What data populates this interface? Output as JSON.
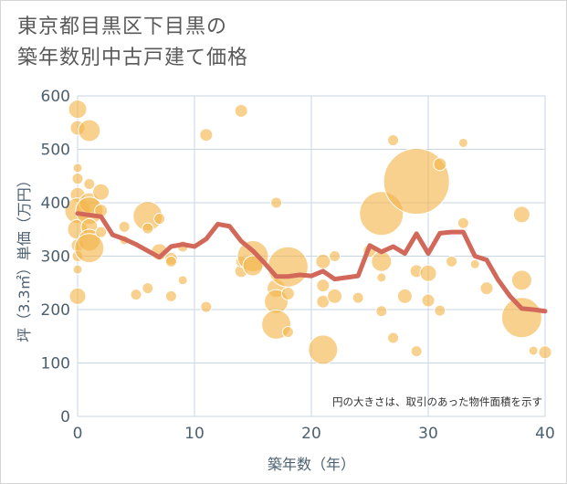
{
  "title_line1": "東京都目黒区下目黒の",
  "title_line2": "築年数別中古戸建て価格",
  "chart_data": {
    "type": "scatter",
    "xlabel": "築年数（年）",
    "ylabel": "坪（3.3㎡）単価（万円）",
    "xlim": [
      0,
      40
    ],
    "ylim": [
      0,
      600
    ],
    "xticks": [
      "0",
      "10",
      "20",
      "30",
      "40"
    ],
    "yticks": [
      "0",
      "100",
      "200",
      "300",
      "400",
      "500",
      "600"
    ],
    "annotation": "円の大きさは、取引のあった物件面積を示す",
    "colors": {
      "bubble": "#f4b448",
      "line": "#d1685a",
      "grid": "#c8d6e4",
      "background": "#ffffff"
    },
    "bubbles": [
      {
        "x": 0,
        "y": 575,
        "s": 10
      },
      {
        "x": 0,
        "y": 540,
        "s": 8
      },
      {
        "x": 0,
        "y": 465,
        "s": 5
      },
      {
        "x": 0,
        "y": 445,
        "s": 6
      },
      {
        "x": 0,
        "y": 415,
        "s": 8
      },
      {
        "x": 0,
        "y": 385,
        "s": 14
      },
      {
        "x": 0,
        "y": 350,
        "s": 11
      },
      {
        "x": 0,
        "y": 320,
        "s": 7
      },
      {
        "x": 0,
        "y": 300,
        "s": 6
      },
      {
        "x": 0,
        "y": 275,
        "s": 5
      },
      {
        "x": 0,
        "y": 225,
        "s": 9
      },
      {
        "x": 1,
        "y": 535,
        "s": 12
      },
      {
        "x": 1,
        "y": 435,
        "s": 6
      },
      {
        "x": 1,
        "y": 400,
        "s": 11
      },
      {
        "x": 1,
        "y": 385,
        "s": 15
      },
      {
        "x": 1,
        "y": 355,
        "s": 9
      },
      {
        "x": 1,
        "y": 330,
        "s": 12
      },
      {
        "x": 1,
        "y": 315,
        "s": 16
      },
      {
        "x": 2,
        "y": 420,
        "s": 9
      },
      {
        "x": 2,
        "y": 385,
        "s": 7
      },
      {
        "x": 2,
        "y": 345,
        "s": 6
      },
      {
        "x": 4,
        "y": 355,
        "s": 6
      },
      {
        "x": 4,
        "y": 330,
        "s": 5
      },
      {
        "x": 5,
        "y": 228,
        "s": 6
      },
      {
        "x": 6,
        "y": 375,
        "s": 16
      },
      {
        "x": 6,
        "y": 352,
        "s": 6
      },
      {
        "x": 6,
        "y": 240,
        "s": 6
      },
      {
        "x": 7,
        "y": 370,
        "s": 6
      },
      {
        "x": 7,
        "y": 308,
        "s": 9
      },
      {
        "x": 8,
        "y": 295,
        "s": 7
      },
      {
        "x": 8,
        "y": 290,
        "s": 6
      },
      {
        "x": 8,
        "y": 225,
        "s": 6
      },
      {
        "x": 9,
        "y": 255,
        "s": 5
      },
      {
        "x": 9,
        "y": 318,
        "s": 6
      },
      {
        "x": 11,
        "y": 527,
        "s": 7
      },
      {
        "x": 11,
        "y": 205,
        "s": 6
      },
      {
        "x": 14,
        "y": 572,
        "s": 7
      },
      {
        "x": 14,
        "y": 272,
        "s": 7
      },
      {
        "x": 14,
        "y": 290,
        "s": 6
      },
      {
        "x": 15,
        "y": 300,
        "s": 17
      },
      {
        "x": 15,
        "y": 282,
        "s": 11
      },
      {
        "x": 17,
        "y": 400,
        "s": 6
      },
      {
        "x": 17,
        "y": 240,
        "s": 10
      },
      {
        "x": 17,
        "y": 215,
        "s": 13
      },
      {
        "x": 17,
        "y": 172,
        "s": 16
      },
      {
        "x": 18,
        "y": 280,
        "s": 22
      },
      {
        "x": 18,
        "y": 230,
        "s": 7
      },
      {
        "x": 18,
        "y": 158,
        "s": 6
      },
      {
        "x": 21,
        "y": 290,
        "s": 8
      },
      {
        "x": 21,
        "y": 245,
        "s": 7
      },
      {
        "x": 21,
        "y": 215,
        "s": 7
      },
      {
        "x": 21,
        "y": 125,
        "s": 16
      },
      {
        "x": 22,
        "y": 300,
        "s": 6
      },
      {
        "x": 22,
        "y": 225,
        "s": 8
      },
      {
        "x": 24,
        "y": 222,
        "s": 6
      },
      {
        "x": 25,
        "y": 310,
        "s": 7
      },
      {
        "x": 26,
        "y": 380,
        "s": 24
      },
      {
        "x": 26,
        "y": 290,
        "s": 11
      },
      {
        "x": 26,
        "y": 260,
        "s": 5
      },
      {
        "x": 26,
        "y": 197,
        "s": 6
      },
      {
        "x": 27,
        "y": 517,
        "s": 6
      },
      {
        "x": 27,
        "y": 147,
        "s": 6
      },
      {
        "x": 28,
        "y": 225,
        "s": 8
      },
      {
        "x": 29,
        "y": 440,
        "s": 36
      },
      {
        "x": 29,
        "y": 272,
        "s": 7
      },
      {
        "x": 29,
        "y": 122,
        "s": 6
      },
      {
        "x": 30,
        "y": 268,
        "s": 9
      },
      {
        "x": 30,
        "y": 217,
        "s": 7
      },
      {
        "x": 31,
        "y": 472,
        "s": 7
      },
      {
        "x": 31,
        "y": 198,
        "s": 6
      },
      {
        "x": 32,
        "y": 290,
        "s": 6
      },
      {
        "x": 33,
        "y": 512,
        "s": 5
      },
      {
        "x": 33,
        "y": 362,
        "s": 6
      },
      {
        "x": 34,
        "y": 285,
        "s": 5
      },
      {
        "x": 35,
        "y": 240,
        "s": 7
      },
      {
        "x": 38,
        "y": 378,
        "s": 9
      },
      {
        "x": 38,
        "y": 255,
        "s": 11
      },
      {
        "x": 38,
        "y": 185,
        "s": 22
      },
      {
        "x": 39,
        "y": 123,
        "s": 5
      },
      {
        "x": 40,
        "y": 120,
        "s": 7
      }
    ],
    "trend": {
      "x": [
        0,
        1,
        2,
        3,
        4,
        5,
        6,
        7,
        8,
        9,
        10,
        11,
        12,
        13,
        14,
        15,
        16,
        17,
        18,
        19,
        20,
        21,
        22,
        23,
        24,
        25,
        26,
        27,
        28,
        29,
        30,
        31,
        32,
        33,
        34,
        35,
        36,
        37,
        38,
        39,
        40
      ],
      "y": [
        380,
        377,
        374,
        340,
        332,
        322,
        310,
        298,
        318,
        322,
        318,
        332,
        360,
        356,
        328,
        310,
        287,
        262,
        262,
        265,
        263,
        272,
        257,
        260,
        263,
        320,
        308,
        318,
        305,
        342,
        305,
        343,
        345,
        345,
        300,
        293,
        255,
        225,
        202,
        200,
        197
      ]
    }
  }
}
